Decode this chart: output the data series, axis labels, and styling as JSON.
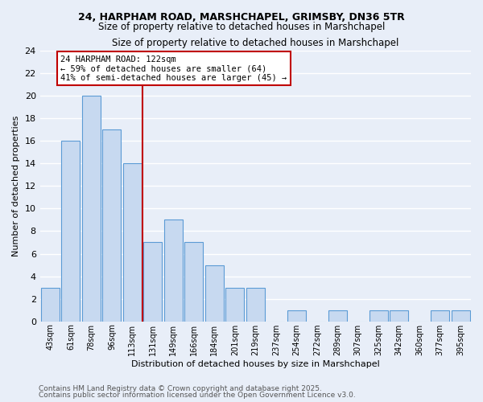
{
  "title_line1": "24, HARPHAM ROAD, MARSHCHAPEL, GRIMSBY, DN36 5TR",
  "title_line2": "Size of property relative to detached houses in Marshchapel",
  "xlabel": "Distribution of detached houses by size in Marshchapel",
  "ylabel": "Number of detached properties",
  "bin_labels": [
    "43sqm",
    "61sqm",
    "78sqm",
    "96sqm",
    "113sqm",
    "131sqm",
    "149sqm",
    "166sqm",
    "184sqm",
    "201sqm",
    "219sqm",
    "237sqm",
    "254sqm",
    "272sqm",
    "289sqm",
    "307sqm",
    "325sqm",
    "342sqm",
    "360sqm",
    "377sqm",
    "395sqm"
  ],
  "bar_values": [
    3,
    16,
    20,
    17,
    14,
    7,
    9,
    7,
    5,
    3,
    3,
    0,
    1,
    0,
    1,
    0,
    1,
    1,
    0,
    1,
    1
  ],
  "bar_color": "#c7d9f0",
  "bar_edge_color": "#5b9bd5",
  "vline_x_idx": 4.5,
  "vline_color": "#c00000",
  "annotation_title": "24 HARPHAM ROAD: 122sqm",
  "annotation_line2": "← 59% of detached houses are smaller (64)",
  "annotation_line3": "41% of semi-detached houses are larger (45) →",
  "annotation_box_color": "#ffffff",
  "annotation_box_edge": "#c00000",
  "ylim": [
    0,
    24
  ],
  "yticks": [
    0,
    2,
    4,
    6,
    8,
    10,
    12,
    14,
    16,
    18,
    20,
    22,
    24
  ],
  "footer1": "Contains HM Land Registry data © Crown copyright and database right 2025.",
  "footer2": "Contains public sector information licensed under the Open Government Licence v3.0.",
  "bg_color": "#e8eef8",
  "grid_color": "#ffffff"
}
